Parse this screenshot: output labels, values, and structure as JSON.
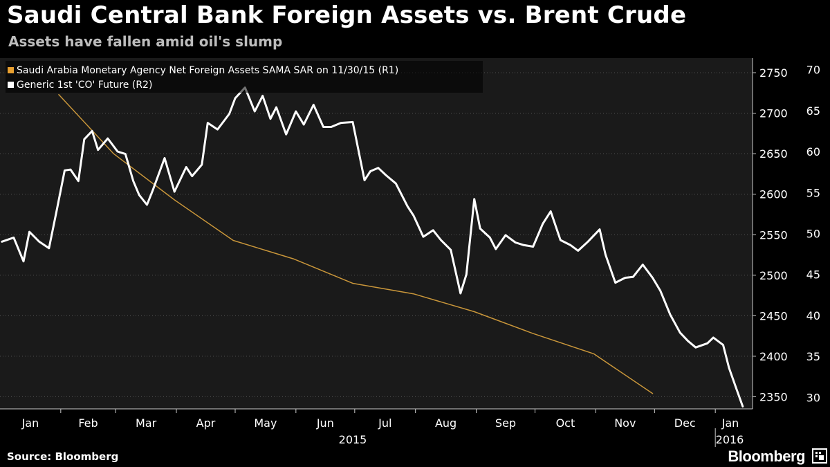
{
  "title": "Saudi Central Bank Foreign Assets vs. Brent Crude",
  "subtitle": "Assets have fallen amid oil's slump",
  "source": "Source: Bloomberg",
  "brand": "Bloomberg",
  "colors": {
    "background": "#000000",
    "plot_background": "#1a1a1a",
    "grid": "#555555",
    "assets_line": "#c9963a",
    "assets_swatch": "#e8a030",
    "oil_line": "#ffffff"
  },
  "chart_data": {
    "type": "line",
    "grid": true,
    "legend_position": "top-left",
    "x_ticks": [
      "Jan",
      "Feb",
      "Mar",
      "Apr",
      "May",
      "Jun",
      "Jul",
      "Aug",
      "Sep",
      "Oct",
      "Nov",
      "Dec",
      "Jan"
    ],
    "year_labels": [
      "2015",
      "2016"
    ],
    "left_axis": {
      "ticks": [
        2350,
        2400,
        2450,
        2500,
        2550,
        2600,
        2650,
        2700,
        2750
      ],
      "range": [
        2335,
        2768
      ]
    },
    "right_axis": {
      "ticks": [
        30,
        35,
        40,
        45,
        50,
        55,
        60,
        65,
        70
      ],
      "range": [
        28.6,
        71.4
      ]
    },
    "series": [
      {
        "name": "Saudi Arabia Monetary Agency Net Foreign Assets SAMA SAR  on 11/30/15 (R1)",
        "axis": "left",
        "points": [
          [
            "2015-01-31",
            2723
          ],
          [
            "2015-02-28",
            2650
          ],
          [
            "2015-03-31",
            2593
          ],
          [
            "2015-04-30",
            2543
          ],
          [
            "2015-05-31",
            2520
          ],
          [
            "2015-06-30",
            2490
          ],
          [
            "2015-07-31",
            2477
          ],
          [
            "2015-08-31",
            2455
          ],
          [
            "2015-09-30",
            2428
          ],
          [
            "2015-10-31",
            2403
          ],
          [
            "2015-11-30",
            2354
          ]
        ]
      },
      {
        "name": "Generic 1st 'CO' Future  (R2)",
        "axis": "right",
        "points": [
          [
            "2015-01-02",
            49.0
          ],
          [
            "2015-01-08",
            49.5
          ],
          [
            "2015-01-13",
            46.6
          ],
          [
            "2015-01-16",
            50.2
          ],
          [
            "2015-01-21",
            49.0
          ],
          [
            "2015-01-26",
            48.2
          ],
          [
            "2015-01-30",
            52.9
          ],
          [
            "2015-02-03",
            57.7
          ],
          [
            "2015-02-06",
            57.8
          ],
          [
            "2015-02-10",
            56.4
          ],
          [
            "2015-02-13",
            61.5
          ],
          [
            "2015-02-17",
            62.5
          ],
          [
            "2015-02-20",
            60.2
          ],
          [
            "2015-02-25",
            61.6
          ],
          [
            "2015-03-02",
            60.0
          ],
          [
            "2015-03-06",
            59.7
          ],
          [
            "2015-03-10",
            56.4
          ],
          [
            "2015-03-13",
            54.7
          ],
          [
            "2015-03-17",
            53.5
          ],
          [
            "2015-03-20",
            55.3
          ],
          [
            "2015-03-26",
            59.2
          ],
          [
            "2015-03-31",
            55.1
          ],
          [
            "2015-04-06",
            58.1
          ],
          [
            "2015-04-09",
            57.0
          ],
          [
            "2015-04-14",
            58.4
          ],
          [
            "2015-04-17",
            63.5
          ],
          [
            "2015-04-22",
            62.7
          ],
          [
            "2015-04-28",
            64.6
          ],
          [
            "2015-05-01",
            66.5
          ],
          [
            "2015-05-06",
            67.8
          ],
          [
            "2015-05-11",
            64.9
          ],
          [
            "2015-05-15",
            66.8
          ],
          [
            "2015-05-19",
            64.0
          ],
          [
            "2015-05-22",
            65.4
          ],
          [
            "2015-05-27",
            62.1
          ],
          [
            "2015-06-01",
            64.9
          ],
          [
            "2015-06-05",
            63.3
          ],
          [
            "2015-06-10",
            65.7
          ],
          [
            "2015-06-15",
            63.0
          ],
          [
            "2015-06-19",
            63.0
          ],
          [
            "2015-06-24",
            63.5
          ],
          [
            "2015-06-30",
            63.6
          ],
          [
            "2015-07-06",
            56.5
          ],
          [
            "2015-07-09",
            57.6
          ],
          [
            "2015-07-13",
            58.0
          ],
          [
            "2015-07-17",
            57.1
          ],
          [
            "2015-07-22",
            56.1
          ],
          [
            "2015-07-28",
            53.3
          ],
          [
            "2015-07-31",
            52.2
          ],
          [
            "2015-08-05",
            49.6
          ],
          [
            "2015-08-10",
            50.4
          ],
          [
            "2015-08-14",
            49.2
          ],
          [
            "2015-08-19",
            48.0
          ],
          [
            "2015-08-24",
            42.7
          ],
          [
            "2015-08-27",
            45.0
          ],
          [
            "2015-08-31",
            54.2
          ],
          [
            "2015-09-03",
            50.6
          ],
          [
            "2015-09-08",
            49.5
          ],
          [
            "2015-09-11",
            48.1
          ],
          [
            "2015-09-16",
            49.8
          ],
          [
            "2015-09-21",
            48.9
          ],
          [
            "2015-09-25",
            48.6
          ],
          [
            "2015-09-30",
            48.4
          ],
          [
            "2015-10-05",
            51.2
          ],
          [
            "2015-10-09",
            52.7
          ],
          [
            "2015-10-14",
            49.2
          ],
          [
            "2015-10-19",
            48.6
          ],
          [
            "2015-10-23",
            47.9
          ],
          [
            "2015-10-28",
            49.0
          ],
          [
            "2015-11-03",
            50.5
          ],
          [
            "2015-11-06",
            47.4
          ],
          [
            "2015-11-11",
            44.0
          ],
          [
            "2015-11-16",
            44.6
          ],
          [
            "2015-11-20",
            44.7
          ],
          [
            "2015-11-25",
            46.2
          ],
          [
            "2015-11-30",
            44.6
          ],
          [
            "2015-12-04",
            43.0
          ],
          [
            "2015-12-09",
            40.1
          ],
          [
            "2015-12-14",
            37.9
          ],
          [
            "2015-12-18",
            36.9
          ],
          [
            "2015-12-22",
            36.1
          ],
          [
            "2015-12-28",
            36.6
          ],
          [
            "2015-12-31",
            37.3
          ],
          [
            "2016-01-05",
            36.4
          ],
          [
            "2016-01-08",
            33.6
          ],
          [
            "2016-01-12",
            30.9
          ],
          [
            "2016-01-15",
            28.9
          ]
        ]
      }
    ]
  }
}
